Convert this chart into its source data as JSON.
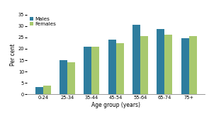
{
  "categories": [
    "0-24",
    "25-34",
    "35-44",
    "45-54",
    "55-64",
    "65-74",
    "75+"
  ],
  "males": [
    3.2,
    15.0,
    20.8,
    24.0,
    30.5,
    28.5,
    24.5
  ],
  "females": [
    3.9,
    14.0,
    20.8,
    22.3,
    25.4,
    26.2,
    25.7
  ],
  "males_color": "#2e7d9e",
  "females_color": "#a8c96e",
  "ylabel": "Per cent",
  "xlabel": "Age group (years)",
  "ylim": [
    0,
    35
  ],
  "yticks": [
    0,
    5,
    10,
    15,
    20,
    25,
    30,
    35
  ],
  "legend_labels": [
    "Males",
    "Females"
  ],
  "bar_width": 0.32,
  "background_color": "#ffffff",
  "ylabel_fontsize": 5.5,
  "xlabel_fontsize": 5.5,
  "tick_fontsize": 4.8,
  "legend_fontsize": 5.2
}
